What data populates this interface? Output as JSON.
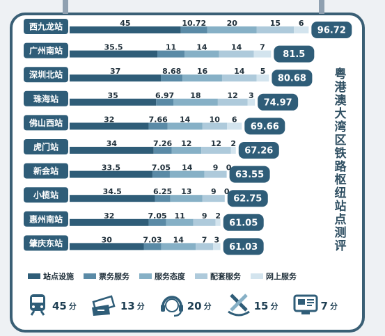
{
  "side_title": "粤港澳大湾区铁路枢纽站点测评",
  "colors": {
    "frame": "#3a5f75",
    "series": [
      "#2f5d78",
      "#5a8aa6",
      "#86b0c6",
      "#aecadb",
      "#d3e4ee"
    ],
    "total_bg": "#2f5d78",
    "station_label_bg": "#2f5d78"
  },
  "chart_data": {
    "type": "bar",
    "stacked": true,
    "orientation": "horizontal",
    "categories": [
      "西九龙站",
      "广州南站",
      "深圳北站",
      "珠海站",
      "佛山西站",
      "虎门站",
      "新会站",
      "小榄站",
      "惠州南站",
      "肇庆东站"
    ],
    "series": [
      {
        "name": "站点设施",
        "values": [
          45,
          35.5,
          37,
          35,
          32,
          34,
          33.5,
          34.5,
          32,
          30
        ]
      },
      {
        "name": "票务服务",
        "values": [
          10.72,
          11,
          8.68,
          6.97,
          7.66,
          7.26,
          7.05,
          6.25,
          7.05,
          7.03
        ]
      },
      {
        "name": "服务态度",
        "values": [
          20,
          14,
          16,
          18,
          14,
          12,
          14,
          13,
          11,
          14
        ]
      },
      {
        "name": "配套服务",
        "values": [
          15,
          14,
          14,
          12,
          10,
          12,
          9,
          9,
          9,
          7
        ]
      },
      {
        "name": "网上服务",
        "values": [
          6,
          7,
          5,
          3,
          6,
          2,
          0,
          0,
          2,
          3
        ]
      }
    ],
    "totals": [
      "96.72",
      "81.5",
      "80.68",
      "74.97",
      "69.66",
      "67.26",
      "63.55",
      "62.75",
      "61.05",
      "61.03"
    ],
    "max_scores": [
      {
        "icon": "train-icon",
        "value": "45",
        "unit": "分"
      },
      {
        "icon": "tickets-icon",
        "value": "13",
        "unit": "分"
      },
      {
        "icon": "headset-icon",
        "value": "20",
        "unit": "分"
      },
      {
        "icon": "tools-icon",
        "value": "15",
        "unit": "分"
      },
      {
        "icon": "web-icon",
        "value": "7",
        "unit": "分"
      }
    ]
  }
}
